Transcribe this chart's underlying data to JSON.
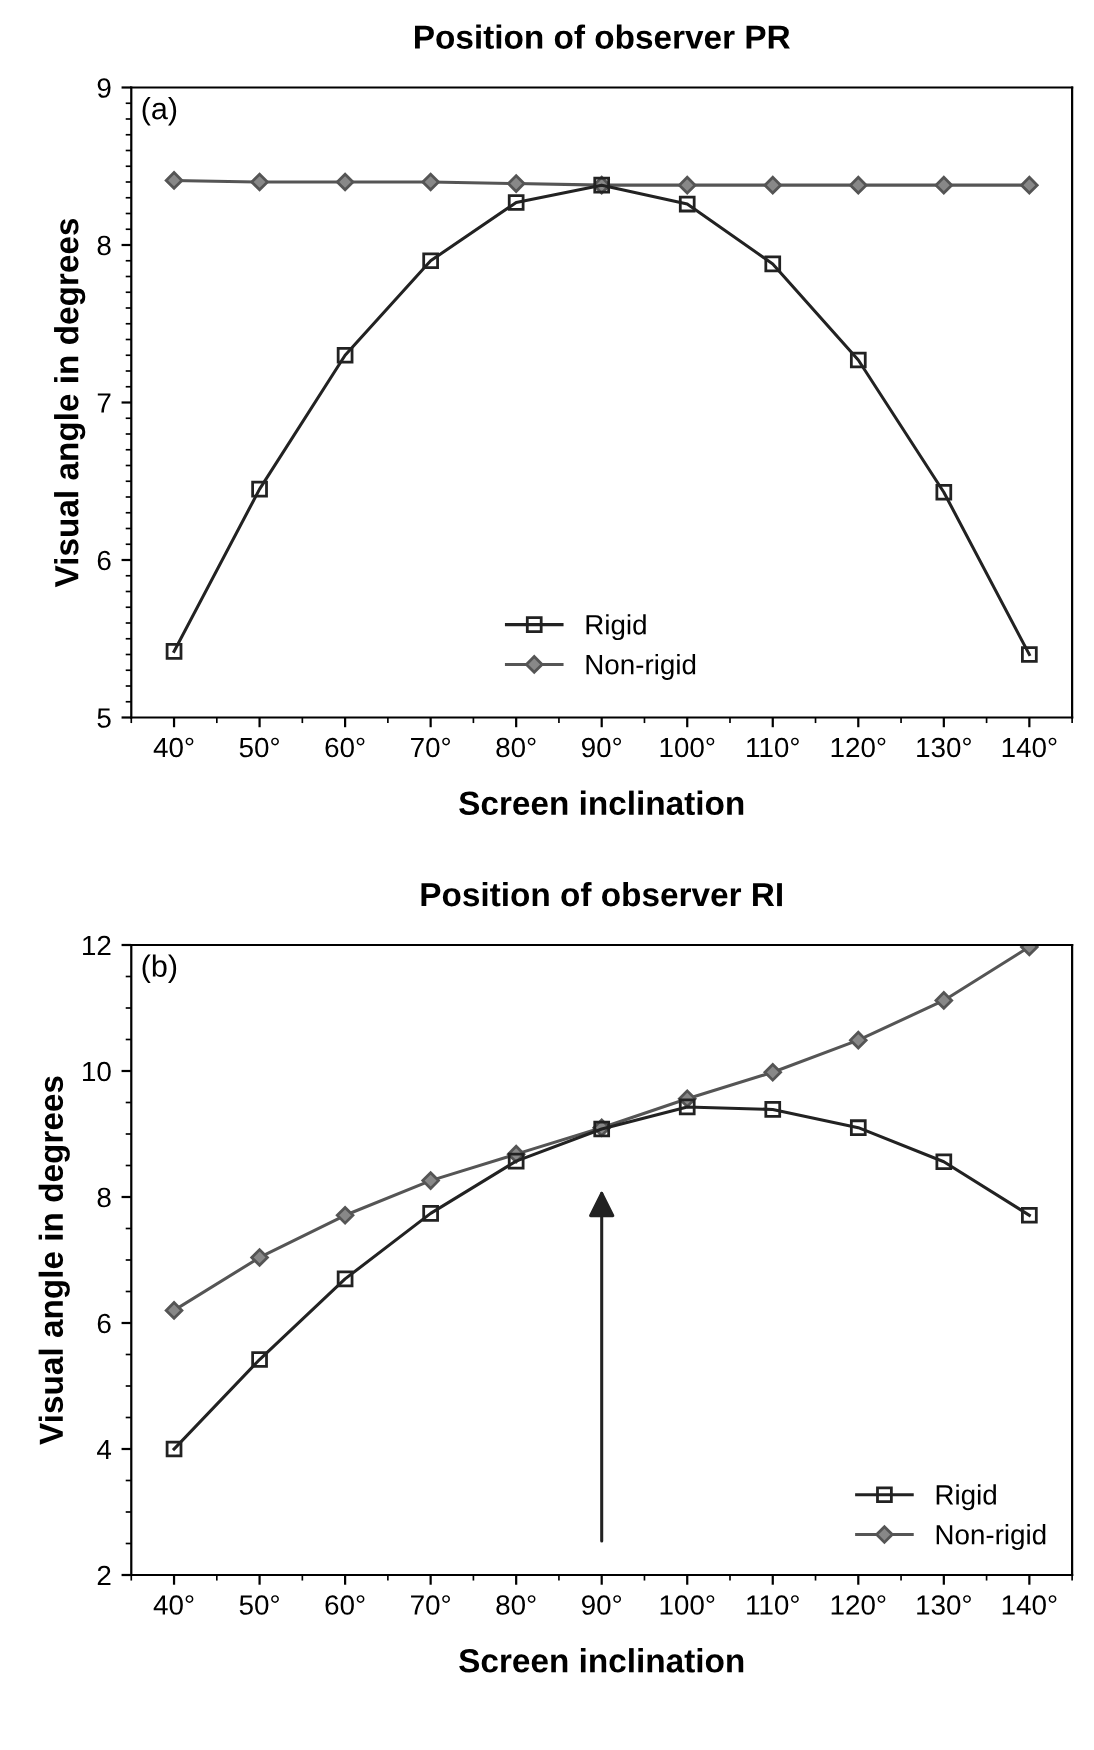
{
  "chart_data": [
    {
      "type": "line",
      "title": "Position of observer PR",
      "xlabel": "Screen inclination",
      "ylabel": "Visual angle in degrees",
      "annotations": [
        "(a)"
      ],
      "x": [
        40,
        50,
        60,
        70,
        80,
        90,
        100,
        110,
        120,
        130,
        140
      ],
      "series": [
        {
          "name": "Rigid",
          "color": "#222222",
          "marker": "square",
          "values": [
            5.42,
            6.45,
            7.3,
            7.9,
            8.27,
            8.38,
            8.26,
            7.88,
            7.27,
            6.43,
            5.4
          ]
        },
        {
          "name": "Non-rigid",
          "color": "#555555",
          "marker": "diamond",
          "values": [
            8.41,
            8.4,
            8.4,
            8.4,
            8.39,
            8.38,
            8.38,
            8.38,
            8.38,
            8.38,
            8.38
          ]
        }
      ],
      "xlim": [
        35,
        145
      ],
      "xticks": [
        {
          "value": 40,
          "label": "40°"
        },
        {
          "value": 50,
          "label": "50°"
        },
        {
          "value": 60,
          "label": "60°"
        },
        {
          "value": 70,
          "label": "70°"
        },
        {
          "value": 80,
          "label": "80°"
        },
        {
          "value": 90,
          "label": "90°"
        },
        {
          "value": 100,
          "label": "100°"
        },
        {
          "value": 110,
          "label": "110°"
        },
        {
          "value": 120,
          "label": "120°"
        },
        {
          "value": 130,
          "label": "130°"
        },
        {
          "value": 140,
          "label": "140°"
        }
      ],
      "ylim": [
        5,
        9
      ],
      "yticks": [
        5,
        6,
        7,
        8,
        9
      ],
      "grid": false,
      "legend": "bottom",
      "line_style": "solid"
    },
    {
      "type": "line",
      "title": "Position of observer RI",
      "xlabel": "Screen inclination",
      "ylabel": "Visual angle in degrees",
      "annotations": [
        "(b)"
      ],
      "x": [
        40,
        50,
        60,
        70,
        80,
        90,
        100,
        110,
        120,
        130,
        140
      ],
      "series": [
        {
          "name": "Rigid",
          "color": "#222222",
          "marker": "square",
          "values": [
            4.0,
            5.42,
            6.7,
            7.74,
            8.57,
            9.08,
            9.43,
            9.39,
            9.1,
            8.56,
            7.71
          ]
        },
        {
          "name": "Non-rigid",
          "color": "#555555",
          "marker": "diamond",
          "values": [
            6.2,
            7.04,
            7.71,
            8.26,
            8.68,
            9.1,
            9.56,
            9.98,
            10.49,
            11.12,
            11.97
          ]
        }
      ],
      "xlim": [
        35,
        145
      ],
      "xticks": [
        {
          "value": 40,
          "label": "40°"
        },
        {
          "value": 50,
          "label": "50°"
        },
        {
          "value": 60,
          "label": "60°"
        },
        {
          "value": 70,
          "label": "70°"
        },
        {
          "value": 80,
          "label": "80°"
        },
        {
          "value": 90,
          "label": "90°"
        },
        {
          "value": 100,
          "label": "100°"
        },
        {
          "value": 110,
          "label": "110°"
        },
        {
          "value": 120,
          "label": "120°"
        },
        {
          "value": 130,
          "label": "130°"
        },
        {
          "value": 140,
          "label": "140°"
        }
      ],
      "ylim": [
        2,
        12
      ],
      "yticks": [
        2,
        4,
        6,
        8,
        10,
        12
      ],
      "grid": false,
      "legend": "bottom right",
      "line_style": "solid"
    }
  ]
}
